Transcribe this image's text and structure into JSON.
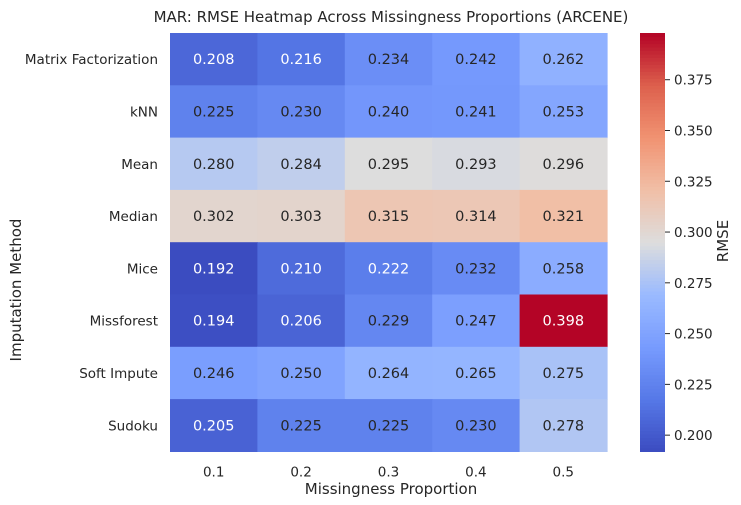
{
  "chart_data": {
    "type": "heatmap",
    "title": "MAR: RMSE Heatmap Across Missingness Proportions (ARCENE)",
    "xlabel": "Missingness Proportion",
    "ylabel": "Imputation Method",
    "x_categories": [
      "0.1",
      "0.2",
      "0.3",
      "0.4",
      "0.5"
    ],
    "y_categories": [
      "Matrix Factorization",
      "kNN",
      "Mean",
      "Median",
      "Mice",
      "Missforest",
      "Soft Impute",
      "Sudoku"
    ],
    "values": [
      [
        0.208,
        0.216,
        0.234,
        0.242,
        0.262
      ],
      [
        0.225,
        0.23,
        0.24,
        0.241,
        0.253
      ],
      [
        0.28,
        0.284,
        0.295,
        0.293,
        0.296
      ],
      [
        0.302,
        0.303,
        0.315,
        0.314,
        0.321
      ],
      [
        0.192,
        0.21,
        0.222,
        0.232,
        0.258
      ],
      [
        0.194,
        0.206,
        0.229,
        0.247,
        0.398
      ],
      [
        0.246,
        0.25,
        0.264,
        0.265,
        0.275
      ],
      [
        0.205,
        0.225,
        0.225,
        0.23,
        0.278
      ]
    ],
    "colorbar": {
      "label": "RMSE",
      "range": [
        0.192,
        0.398
      ],
      "ticks": [
        "0.200",
        "0.225",
        "0.250",
        "0.275",
        "0.300",
        "0.325",
        "0.350",
        "0.375"
      ],
      "colormap": "coolwarm"
    },
    "grid": false
  }
}
